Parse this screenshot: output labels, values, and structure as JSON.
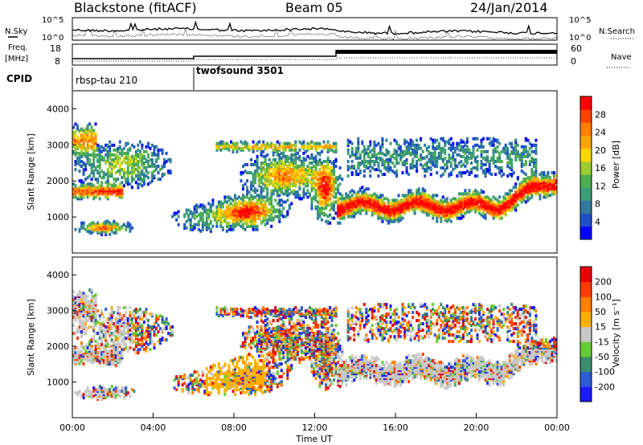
{
  "header": {
    "station": "Blackstone (fitACF)",
    "beam": "Beam 05",
    "date": "24/Jan/2014"
  },
  "top_panels": {
    "nsky_label": "N.Sky",
    "nsearch_label": "N.Search",
    "freq_label_1": "Freq.",
    "freq_label_2": "[MHz]",
    "nave_label": "Nave",
    "cpid_label": "CPID",
    "noise_ticks_left": [
      "10^5",
      "10^0"
    ],
    "noise_ticks_right": [
      "10^5",
      "10^0"
    ],
    "freq_ticks": [
      "18",
      "8"
    ],
    "nave_ticks": [
      "60",
      "0"
    ],
    "cpid_segments": [
      {
        "start_hour": 0,
        "end_hour": 6,
        "label": "rbsp-tau 210"
      },
      {
        "start_hour": 6,
        "end_hour": 24,
        "label": "twofsound 3501"
      }
    ]
  },
  "chart_data": [
    {
      "type": "heatmap",
      "name": "power",
      "ylabel": "Slant Range [km]",
      "xlim": [
        0,
        24
      ],
      "ylim": [
        0,
        4500
      ],
      "yticks": [
        "4000",
        "3000",
        "2000",
        "1000"
      ],
      "colorbar_title": "Power [dB]",
      "colorbar_ticks": [
        "28",
        "24",
        "20",
        "16",
        "12",
        "8",
        "4"
      ],
      "colorbar_colors": [
        "#0000ff",
        "#1e50c8",
        "#2f7a9c",
        "#3c9c74",
        "#4caf50",
        "#9acd32",
        "#ffd700",
        "#ffa500",
        "#ff7f00",
        "#ff4500",
        "#ff0000"
      ]
    },
    {
      "type": "heatmap",
      "name": "velocity",
      "ylabel": "Slant Range [km]",
      "xlim": [
        0,
        24
      ],
      "ylim": [
        0,
        4500
      ],
      "yticks": [
        "4000",
        "3000",
        "2000",
        "1000"
      ],
      "colorbar_title": "Velocity [m s⁻¹]",
      "colorbar_ticks": [
        "200",
        "100",
        "50",
        "15",
        "-15",
        "-50",
        "-100",
        "-200"
      ],
      "colorbar_colors": [
        "#1a1aff",
        "#2e5cd6",
        "#3c8c6e",
        "#66cc33",
        "#c8c8c8",
        "#ffb000",
        "#ff7f00",
        "#ff3c00",
        "#e60000"
      ]
    }
  ],
  "xaxis": {
    "ticks": [
      "00:00",
      "04:00",
      "08:00",
      "12:00",
      "16:00",
      "20:00",
      "00:00"
    ],
    "label": "Time UT"
  }
}
